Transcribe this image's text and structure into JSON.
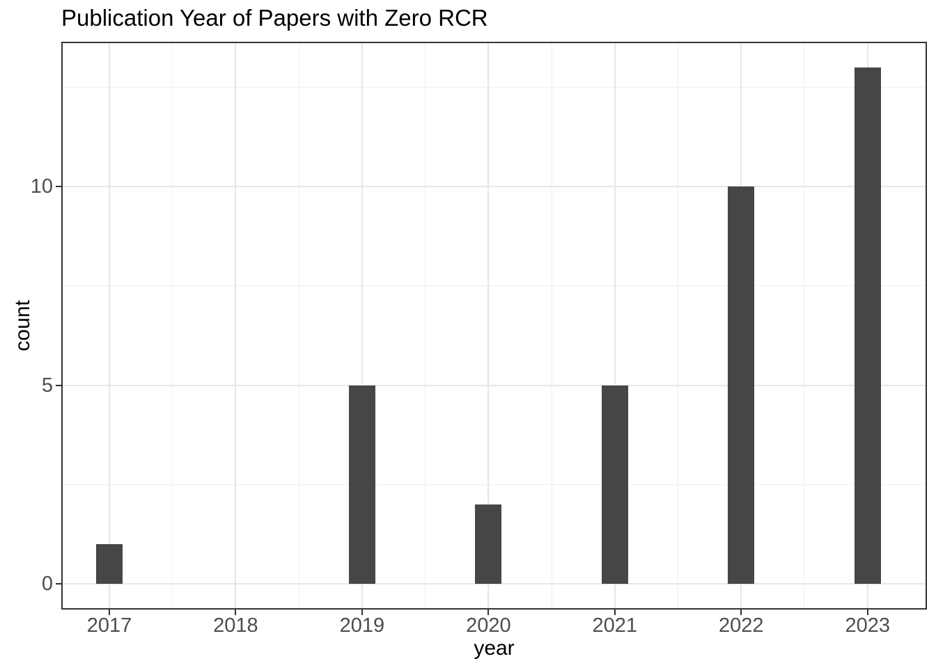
{
  "chart_data": {
    "type": "bar",
    "title": "Publication Year of Papers with Zero RCR",
    "xlabel": "year",
    "ylabel": "count",
    "categories": [
      "2017",
      "2018",
      "2019",
      "2020",
      "2021",
      "2022",
      "2023"
    ],
    "x_values": [
      2017,
      2018,
      2019,
      2020,
      2021,
      2022,
      2023
    ],
    "values": [
      1,
      0,
      5,
      2,
      5,
      10,
      13
    ],
    "y_tick_labels": [
      "0",
      "5",
      "10"
    ],
    "y_major_ticks": [
      0,
      5,
      10
    ],
    "y_minor_ticks": [
      2.5,
      7.5,
      12.5
    ],
    "x_minor_ticks": [
      2017.5,
      2018.5,
      2019.5,
      2020.5,
      2021.5,
      2022.5
    ],
    "xlim": [
      2016.62,
      2023.47
    ],
    "ylim": [
      -0.65,
      13.65
    ],
    "grid": "major+minor",
    "legend": "none",
    "colors": {
      "bar_fill": "#464646",
      "panel_border": "#333333",
      "grid_major": "#e6e6e6",
      "grid_minor": "#efefef",
      "tick_mark": "#333333",
      "tick_label": "#4d4d4d",
      "title": "#000000",
      "axis_title": "#000000",
      "background": "#ffffff"
    }
  }
}
